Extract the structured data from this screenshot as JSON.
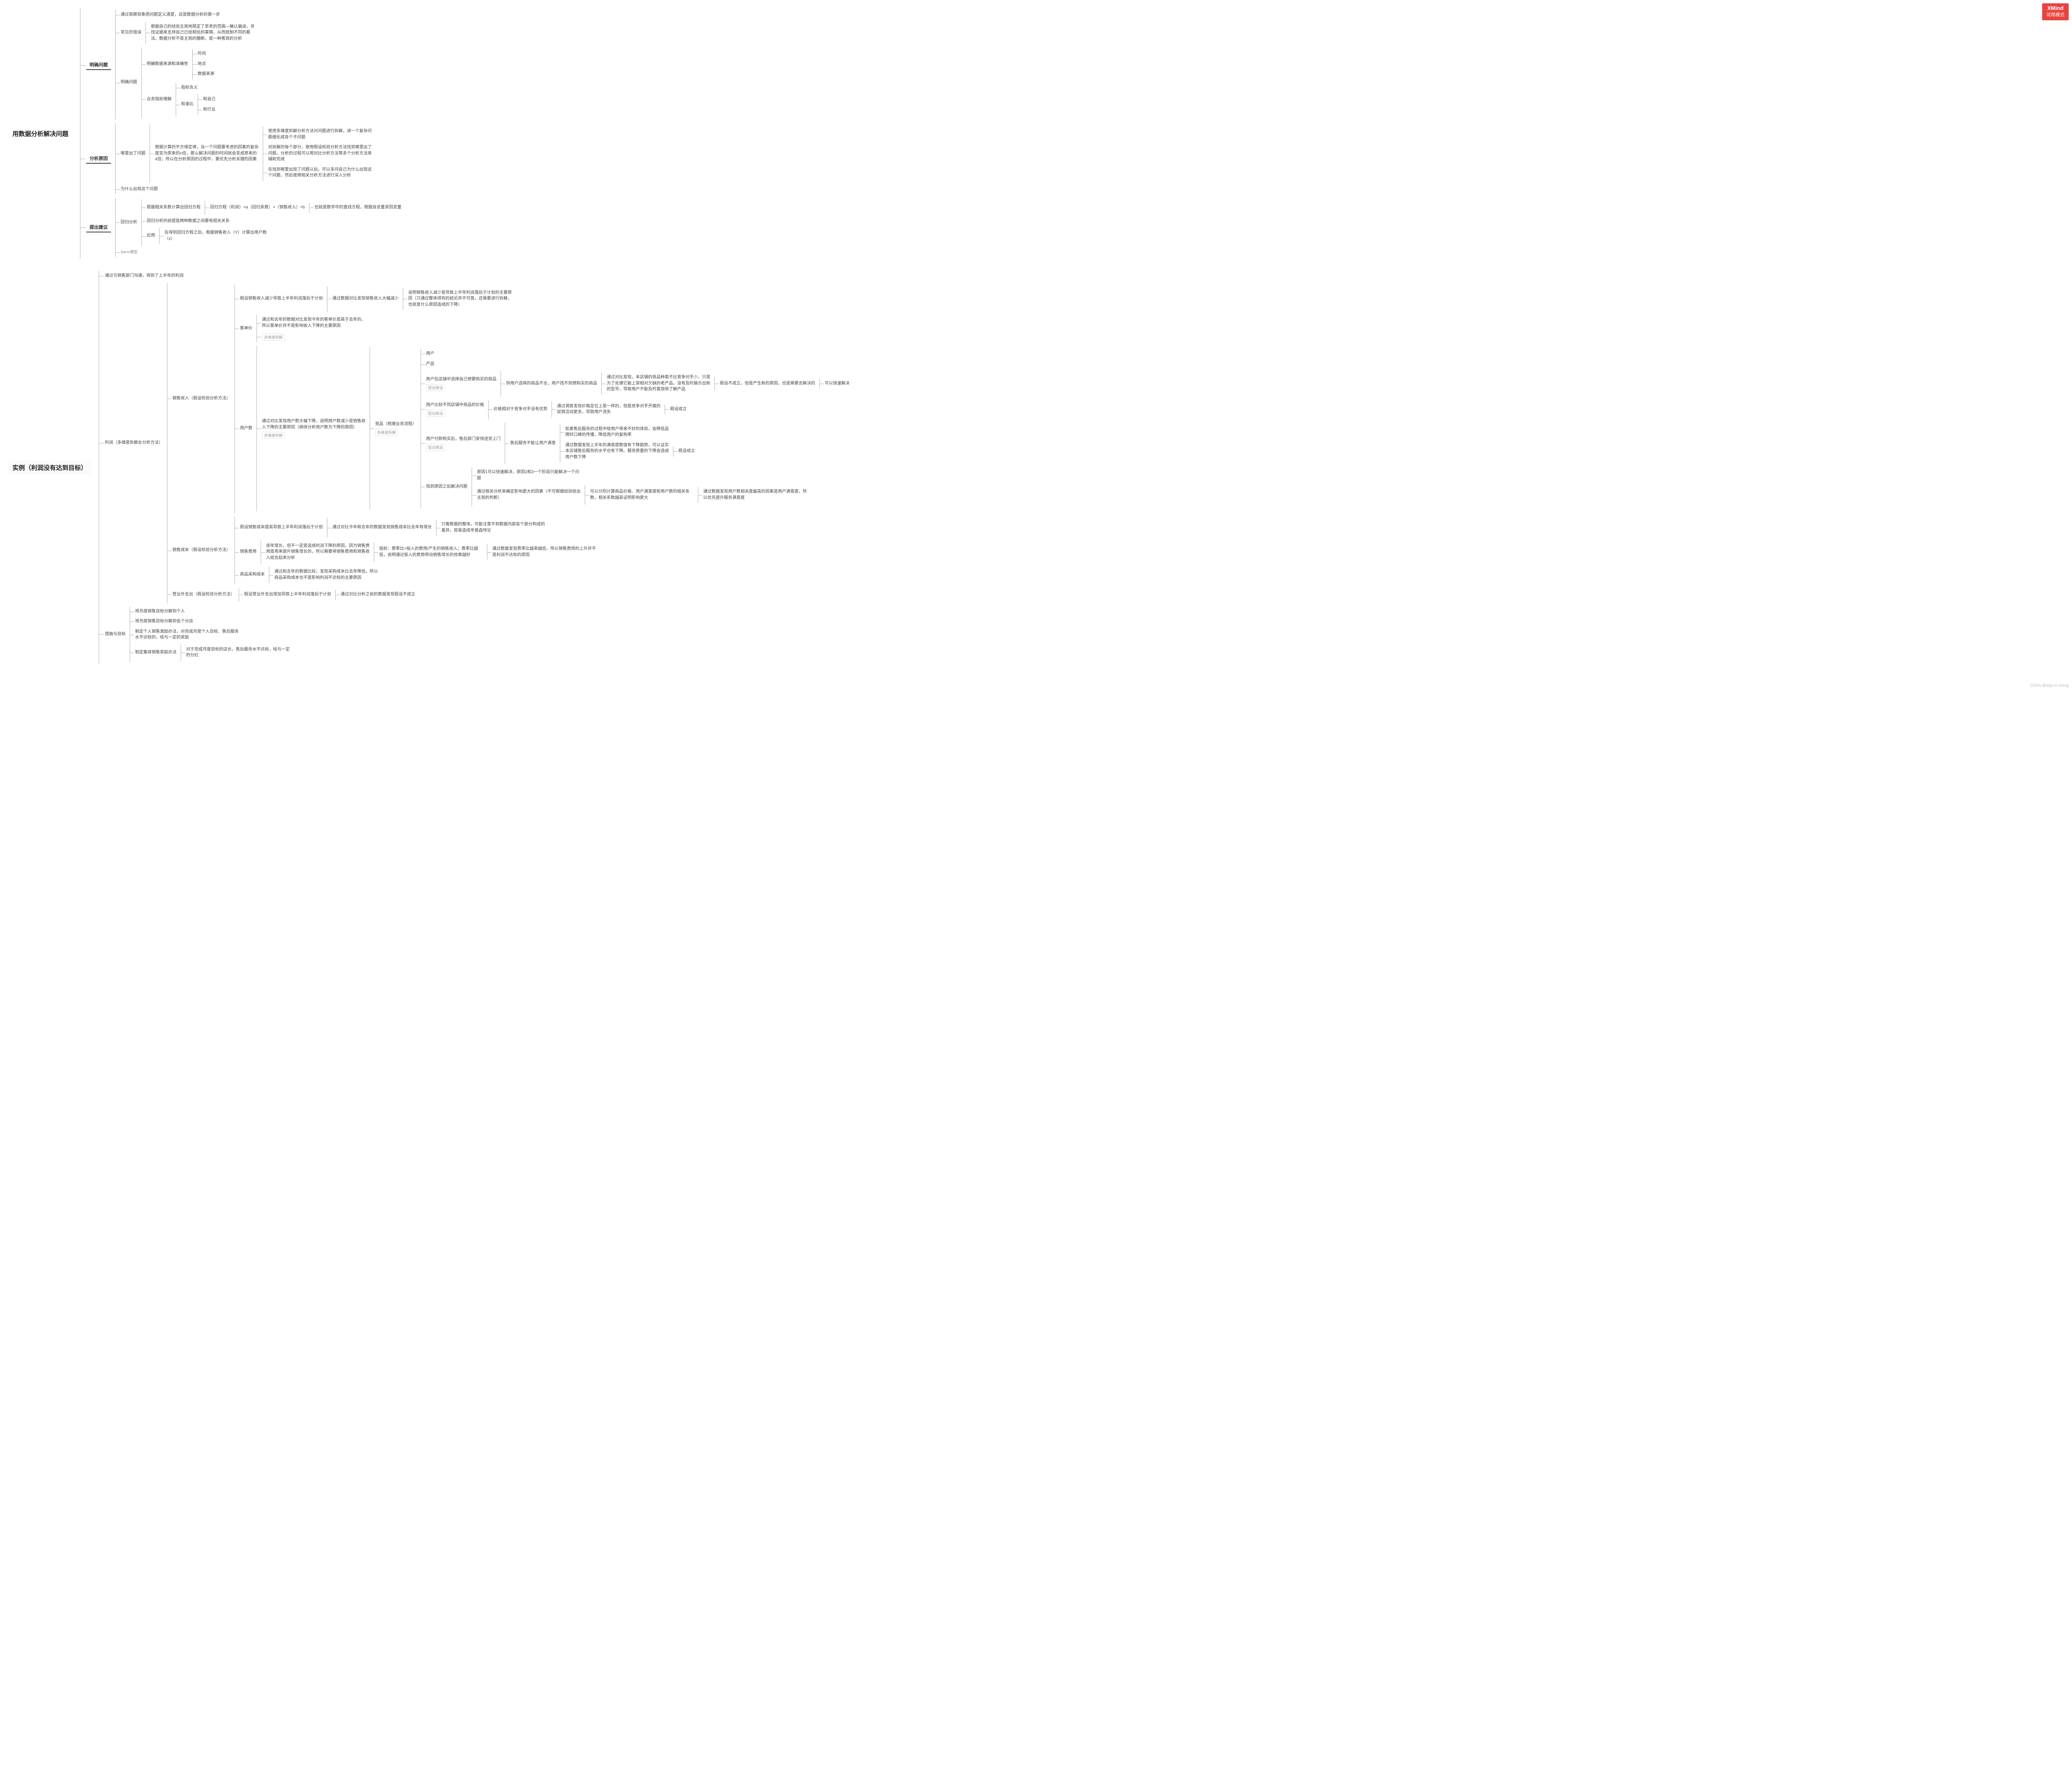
{
  "app": {
    "watermark_brand": "XMind",
    "watermark_mode": "试用模式",
    "footer": "CSDN @liegu to cheng"
  },
  "rootA": {
    "title": "用数据分析解决问题",
    "b1": "明确问题",
    "b1_n1": "通过观察现象把问题定义清楚，这是数据分析的第一步",
    "b1_n2": "常见的错误",
    "b1_n2_d": "根据自己的经验主观地限定了思考的范围—确认偏误，寻找证据来支持自己已经相信的事情，从而抵制不同的看法。数据分析不是主观的臆断，是一种客观的分析",
    "b1_n3": "明确问题",
    "b1_n3_a": "明确数据来源和准确性",
    "b1_n3_a1": "时间",
    "b1_n3_a2": "地点",
    "b1_n3_a3": "数据来源",
    "b1_n3_b": "业务指标理解",
    "b1_n3_b1": "指标含义",
    "b1_n3_b2": "和谁比",
    "b1_n3_b2a": "和自己",
    "b1_n3_b2b": "和行业",
    "b2": "分析原因",
    "b2_n1": "哪里出了问题",
    "b2_n1_d": "根据计算的平方律定律，当一个问题要考虑的因素的复杂度变为原来的n倍，那么解决问题的时间就会变成原来的4倍；所以在分析原因的过程中，要优先分析关键的因素",
    "b2_n1_s1": "使用多维度拆解分析方法对问题进行拆解，讲一个复杂问题细化成各个子问题",
    "b2_n1_s2": "对拆解的每个部分，使用假设检验分析方法找到哪里出了问题。分析的过程可以用对比分析方法等多个分析方法来辅助完成",
    "b2_n1_s3": "在找到哪里出现了问题以后，可以多问自己为什么出现这个问题，然后使用相关分析方法进行深入分析",
    "b2_n2": "为什么出现这个问题",
    "b3": "提出建议",
    "b3_n1": "回归分析",
    "b3_n1_a": "根据相关系数计算出回归方程",
    "b3_n1_a1": "回归方程（利润）=a（回归系数）×（销售收入）+b",
    "b3_n1_a2": "也就是数学中的直线方程，根据自变量求因变量",
    "b3_n1_b": "回归分析的前提是两种数据之间要有相关关系",
    "b3_n1_c": "应用",
    "b3_n1_c1": "在得到回归方程之后，根据销售收入（Y）计算出用户数（x）",
    "b3_n2": "Aarrrr模型"
  },
  "rootB": {
    "title": "实例（利润没有达到目标）",
    "pre": "通过与销售部门沟通，得到了上半年的利润",
    "profit": "利润（多维度拆解女分析方法）",
    "rev": "销售收入（假设检验分析方法）",
    "rev_h1": "假设销售收入减少导致上半年利润落后于计划",
    "rev_h1a": "通过数据对比发现销售收入大幅减少",
    "rev_h1b": "说明销售收入减少是导致上半年利润落后于计划的主要原因（只通过整体得到的结论并不可靠，还需要进行拆解，也就是什么原因造成的下降）",
    "kp": "客单价",
    "kp1": "通过和去年的数据对比发现今年的客单价是高于去年的，所以客单价并不是影响收入下降的主要原因",
    "kp_tag": "多维度拆解",
    "users": "用户数",
    "users_d": "通过对比发现用户数大幅下降，说明用户数减少是销售收入下降的主要原因（继续分析用户数为下降的原因）",
    "users_tag": "多维度拆解",
    "ctx": "竞品（梳理业务流程）",
    "ctx_tag": "多维度拆解",
    "ctx_u1": "用户",
    "ctx_u2": "产品",
    "q1": "用户在店铺中选择自己想要购买的商品",
    "q1_tag": "提出假设",
    "q1a": "供用户选择的商品不全，用户找不到想购买的商品",
    "q1b": "通过对比发现，本店铺的商品种类不比竞争对手少，只是为了处理它能上架相对欠缺的老产品。没有及时展示出新的型号，导致用户不能及时直观地了解产品",
    "q1c": "假设不成立，但是产生新的原因，也是需要去解决的",
    "q1d": "可以快速解决",
    "q2": "用户比较不同店铺中商品的价格",
    "q2_tag": "提出假设",
    "q2a": "价格相对于竞争对手没有优势",
    "q2b": "通过调查发现价格定位上是一样的，但是竞争对手开展的促销活动更多，导致用户流失",
    "q2c": "假设成立",
    "q3": "用户付款购买后，售后部门安排送货上门",
    "q3_tag": "提出假设",
    "q3a": "售后服务不能让用户满意",
    "q3b1": "如果售后服务的过程中给用户带来不好的体验，会降低品牌好口碑的传播，降低用户的复购率",
    "q3b2": "通过数据发现上半年的满意度数值有下降趋势，可以证实本店铺售后服务的水平也有下降。服务质量的下降会造成用户数下降",
    "q3c": "假设成立",
    "sol": "找到原因之后解决问题",
    "sol_a": "原因1可以快速解决，原因2和3一个阶段只能解决一个问题",
    "sol_b": "通过相关分析来确定影响更大的因素（不可根据经验给出主观的判断）",
    "sol_c": "可以分别计算商品价格、用户满意度和用户数的相关系数，相关系数越高证明影响更大",
    "sol_d": "通过数据发现用户数相关度最高的因素是用户满意度，所以优先提升服务满意度",
    "cost": "销售成本（假设检验分析方法）",
    "cost_h": "假设销售成本提高导致上半年利润落后于计划",
    "cost_h_a": "通过对比今年和去年的数据发现销售成本比去年有增长",
    "cost_h_b": "只看数据的整体，可能注意不到数据内部各个部分构成的差异，容易造成辛普森悖论",
    "sf": "销售费用",
    "sf_a": "逐年增长，但不一定是造成利润下降的原因。因为销售费用是用来提升销售增长的，所以需要将销售费用和销售收入结合起来分析",
    "sf_b": "指标：费率比=投入的费用/产生的销售收入；费率比越低，说明通过投入的费用带动销售增长的效果越好",
    "sf_c": "通过数据发现费率比越来越低，所以销售费用的上升并不是利润不达标的原因",
    "pc": "商品采购成本",
    "pc_a": "通过和去年的数据比较，发现采购成本比去年降低，所以商品采购成本也不是影响利润不达标的主要原因",
    "oe": "营业外支出（假设检验分析方法）",
    "oe_a": "假设营业外支出增加导致上半年利润落后于计划",
    "oe_b": "通过对比分析之前的数据发现假设不成立",
    "act": "措施与目标",
    "act1": "将月度销售目标分解到个人",
    "act2": "将月度销售目标分解到各个分店",
    "act3": "制定个人销售激励办法，对完成月度个人目标、售后服务水平达标的，给与一定的奖励",
    "act4": "制定集体销售奖励办法",
    "act4a": "对于完成月度目标的店长，售后服务水平达标，给与一定的分红"
  },
  "style": {
    "bg": "#ffffff",
    "line": "#b0b0b0",
    "text": "#444444",
    "accent": "#e8443e",
    "root_font_size": 15,
    "badge_font_size": 11,
    "leaf_font_size": 10
  }
}
